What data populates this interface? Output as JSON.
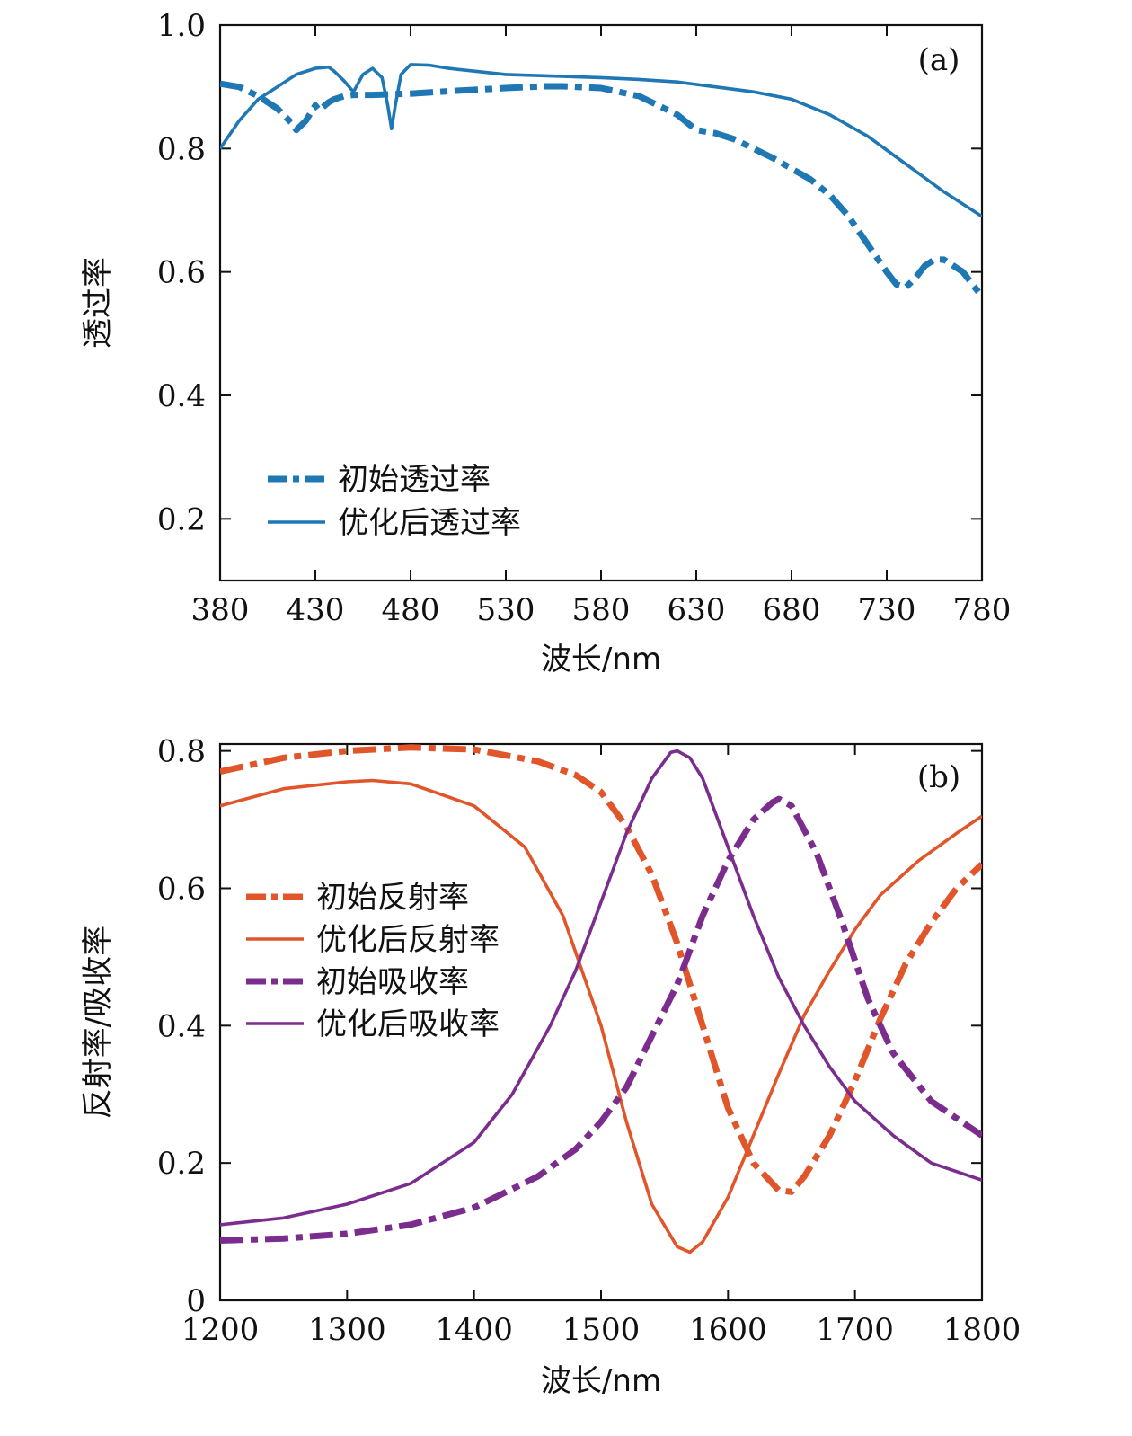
{
  "colors": {
    "blue": "#1f77b4",
    "orange": "#e0562a",
    "purple": "#7b2d8e"
  },
  "chart_data": [
    {
      "type": "line",
      "panel_label": "(a)",
      "xlabel": "波长/nm",
      "ylabel": "透过率",
      "xlim": [
        380,
        780
      ],
      "ylim": [
        0.1,
        1.0
      ],
      "x_ticks": [
        "380",
        "430",
        "480",
        "530",
        "580",
        "630",
        "680",
        "730",
        "780"
      ],
      "y_ticks": [
        "0.2",
        "0.4",
        "0.6",
        "0.8",
        "1.0"
      ],
      "grid": false,
      "legend_position": "bottom-left",
      "series": [
        {
          "name": "初始透过率",
          "color": "#1f77b4",
          "style": "dashdot",
          "x": [
            380,
            390,
            400,
            410,
            418,
            420,
            425,
            430,
            432,
            437,
            440,
            445,
            450,
            460,
            470,
            480,
            500,
            530,
            550,
            560,
            580,
            600,
            620,
            630,
            640,
            650,
            670,
            690,
            700,
            710,
            720,
            730,
            735,
            740,
            745,
            750,
            755,
            760,
            770,
            780
          ],
          "y": [
            0.905,
            0.9,
            0.885,
            0.865,
            0.84,
            0.83,
            0.845,
            0.87,
            0.862,
            0.875,
            0.88,
            0.885,
            0.887,
            0.887,
            0.888,
            0.889,
            0.893,
            0.898,
            0.901,
            0.901,
            0.898,
            0.885,
            0.855,
            0.83,
            0.825,
            0.815,
            0.785,
            0.75,
            0.725,
            0.69,
            0.645,
            0.6,
            0.58,
            0.575,
            0.59,
            0.61,
            0.62,
            0.62,
            0.6,
            0.56
          ]
        },
        {
          "name": "优化后透过率",
          "color": "#1f77b4",
          "style": "solid",
          "x": [
            380,
            390,
            400,
            410,
            420,
            430,
            437,
            440,
            445,
            450,
            455,
            460,
            465,
            468,
            470,
            472,
            475,
            480,
            490,
            500,
            530,
            580,
            600,
            620,
            640,
            660,
            680,
            700,
            720,
            740,
            760,
            780
          ],
          "y": [
            0.8,
            0.845,
            0.88,
            0.9,
            0.92,
            0.93,
            0.932,
            0.925,
            0.91,
            0.892,
            0.92,
            0.93,
            0.915,
            0.87,
            0.832,
            0.87,
            0.92,
            0.936,
            0.935,
            0.93,
            0.92,
            0.915,
            0.912,
            0.908,
            0.9,
            0.892,
            0.88,
            0.855,
            0.82,
            0.775,
            0.73,
            0.69
          ]
        }
      ]
    },
    {
      "type": "line",
      "panel_label": "(b)",
      "xlabel": "波长/nm",
      "ylabel": "反射率/吸收率",
      "xlim": [
        1200,
        1800
      ],
      "ylim": [
        0,
        0.81
      ],
      "x_ticks": [
        "1200",
        "1300",
        "1400",
        "1500",
        "1600",
        "1700",
        "1800"
      ],
      "y_ticks": [
        "0",
        "0.2",
        "0.4",
        "0.6",
        "0.8"
      ],
      "grid": false,
      "legend_position": "center-left",
      "series": [
        {
          "name": "初始反射率",
          "color": "#e0562a",
          "style": "dashdot",
          "x": [
            1200,
            1250,
            1300,
            1350,
            1400,
            1450,
            1480,
            1500,
            1520,
            1540,
            1560,
            1580,
            1600,
            1620,
            1640,
            1650,
            1660,
            1680,
            1700,
            1720,
            1740,
            1760,
            1780,
            1800
          ],
          "y": [
            0.77,
            0.79,
            0.8,
            0.805,
            0.802,
            0.785,
            0.765,
            0.74,
            0.69,
            0.62,
            0.52,
            0.4,
            0.28,
            0.2,
            0.16,
            0.158,
            0.18,
            0.24,
            0.32,
            0.41,
            0.49,
            0.55,
            0.6,
            0.635
          ]
        },
        {
          "name": "优化后反射率",
          "color": "#e0562a",
          "style": "solid",
          "x": [
            1200,
            1250,
            1300,
            1320,
            1350,
            1400,
            1440,
            1470,
            1500,
            1520,
            1540,
            1560,
            1570,
            1580,
            1600,
            1620,
            1640,
            1660,
            1680,
            1700,
            1720,
            1750,
            1780,
            1800
          ],
          "y": [
            0.72,
            0.745,
            0.755,
            0.757,
            0.752,
            0.72,
            0.66,
            0.56,
            0.4,
            0.26,
            0.14,
            0.078,
            0.07,
            0.085,
            0.15,
            0.24,
            0.33,
            0.415,
            0.48,
            0.54,
            0.59,
            0.64,
            0.68,
            0.705
          ]
        },
        {
          "name": "初始吸收率",
          "color": "#7b2d8e",
          "style": "dashdot",
          "x": [
            1200,
            1250,
            1300,
            1350,
            1400,
            1450,
            1480,
            1500,
            1520,
            1540,
            1560,
            1580,
            1600,
            1620,
            1635,
            1640,
            1650,
            1670,
            1690,
            1710,
            1730,
            1760,
            1800
          ],
          "y": [
            0.087,
            0.09,
            0.097,
            0.11,
            0.135,
            0.18,
            0.22,
            0.26,
            0.31,
            0.385,
            0.46,
            0.56,
            0.64,
            0.7,
            0.725,
            0.73,
            0.72,
            0.65,
            0.55,
            0.44,
            0.36,
            0.29,
            0.24
          ]
        },
        {
          "name": "优化后吸收率",
          "color": "#7b2d8e",
          "style": "solid",
          "x": [
            1200,
            1250,
            1300,
            1350,
            1400,
            1430,
            1460,
            1480,
            1500,
            1520,
            1540,
            1555,
            1560,
            1570,
            1580,
            1600,
            1620,
            1640,
            1660,
            1680,
            1700,
            1730,
            1760,
            1800
          ],
          "y": [
            0.11,
            0.12,
            0.14,
            0.17,
            0.23,
            0.3,
            0.4,
            0.48,
            0.58,
            0.68,
            0.76,
            0.798,
            0.8,
            0.79,
            0.76,
            0.66,
            0.56,
            0.47,
            0.4,
            0.34,
            0.29,
            0.24,
            0.2,
            0.175
          ]
        }
      ]
    }
  ]
}
